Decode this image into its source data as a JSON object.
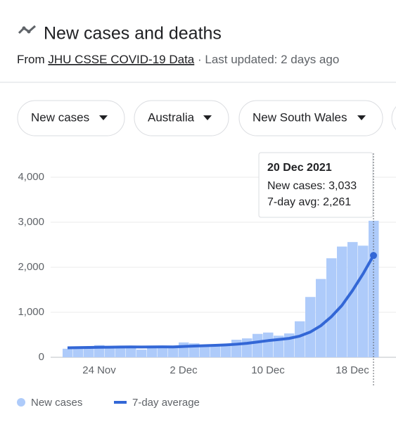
{
  "header": {
    "title": "New cases and deaths",
    "source_prefix": "From",
    "source_link": "JHU CSSE COVID-19 Data",
    "updated": "· Last updated: 2 days ago"
  },
  "controls": [
    "New cases",
    "Australia",
    "New South Wales"
  ],
  "tooltip": {
    "title": "20 Dec 2021",
    "lines": [
      "New cases: 3,033",
      "7-day avg: 2,261"
    ]
  },
  "chart_data": {
    "type": "bar_line",
    "categories": [
      null,
      null,
      null,
      "24 Nov",
      null,
      null,
      null,
      null,
      null,
      null,
      null,
      "2 Dec",
      null,
      null,
      null,
      null,
      null,
      null,
      null,
      "10 Dec",
      null,
      null,
      null,
      null,
      null,
      null,
      null,
      "18 Dec",
      null,
      null
    ],
    "series": [
      {
        "name": "New cases",
        "color": "#aecbfa",
        "type": "bar",
        "values": [
          190,
          210,
          240,
          270,
          240,
          250,
          230,
          170,
          230,
          230,
          240,
          330,
          310,
          260,
          280,
          270,
          390,
          420,
          520,
          550,
          480,
          530,
          800,
          1340,
          1740,
          2200,
          2460,
          2560,
          2480,
          3033
        ]
      },
      {
        "name": "7-day average",
        "color": "#3367d6",
        "type": "line",
        "values": [
          210,
          215,
          218,
          222,
          225,
          228,
          230,
          228,
          230,
          232,
          230,
          240,
          250,
          258,
          265,
          275,
          290,
          310,
          340,
          370,
          395,
          420,
          470,
          560,
          700,
          900,
          1150,
          1480,
          1850,
          2261
        ]
      }
    ],
    "ylim": [
      0,
      4000
    ],
    "yticks": [
      0,
      {
        "value": 1000,
        "label": "1,000"
      },
      {
        "value": 2000,
        "label": "2,000"
      },
      {
        "value": 3000,
        "label": "3,000"
      },
      {
        "value": 4000,
        "label": "4,000"
      }
    ],
    "grid": true,
    "legend": "bottom"
  }
}
